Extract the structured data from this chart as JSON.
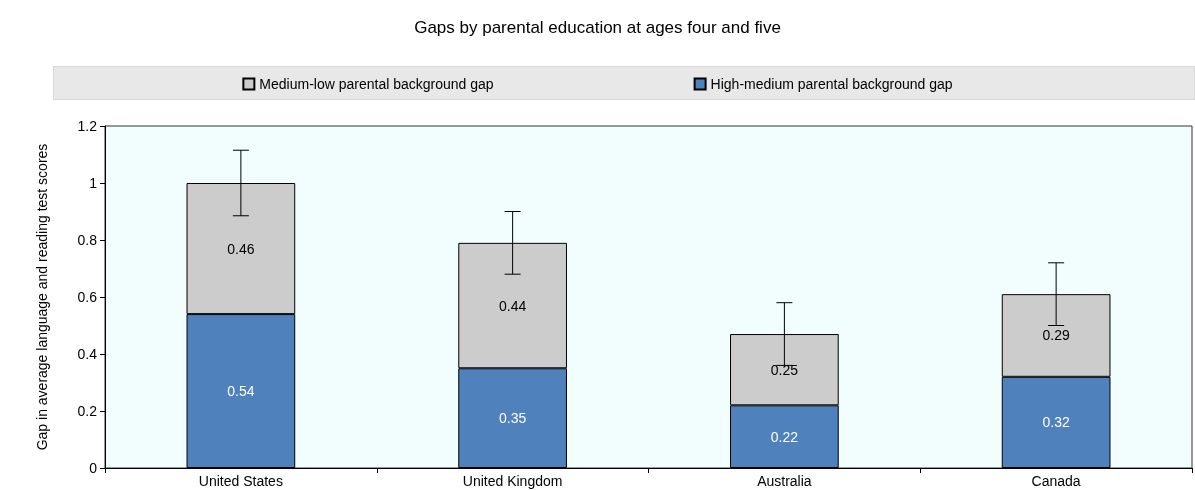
{
  "chart_data": {
    "type": "bar",
    "title": "Gaps by parental education at ages four and five",
    "ylabel": "Gap in average language and reading test scores",
    "categories": [
      "United States",
      "United Kingdom",
      "Australia",
      "Canada"
    ],
    "stacked": true,
    "series": [
      {
        "name": "High-medium parental background gap",
        "color": "#4f81bd",
        "values": [
          0.54,
          0.35,
          0.22,
          0.32
        ]
      },
      {
        "name": "Medium-low parental background gap",
        "color": "#cccccc",
        "values": [
          0.46,
          0.44,
          0.25,
          0.29
        ],
        "errors": [
          0.115,
          0.11,
          0.11,
          0.11
        ]
      }
    ],
    "ylim": [
      0,
      1.2
    ],
    "yticks": [
      0,
      0.2,
      0.4,
      0.6,
      0.8,
      1,
      1.2
    ],
    "data_labels": true,
    "legend": "top",
    "grid": false
  }
}
